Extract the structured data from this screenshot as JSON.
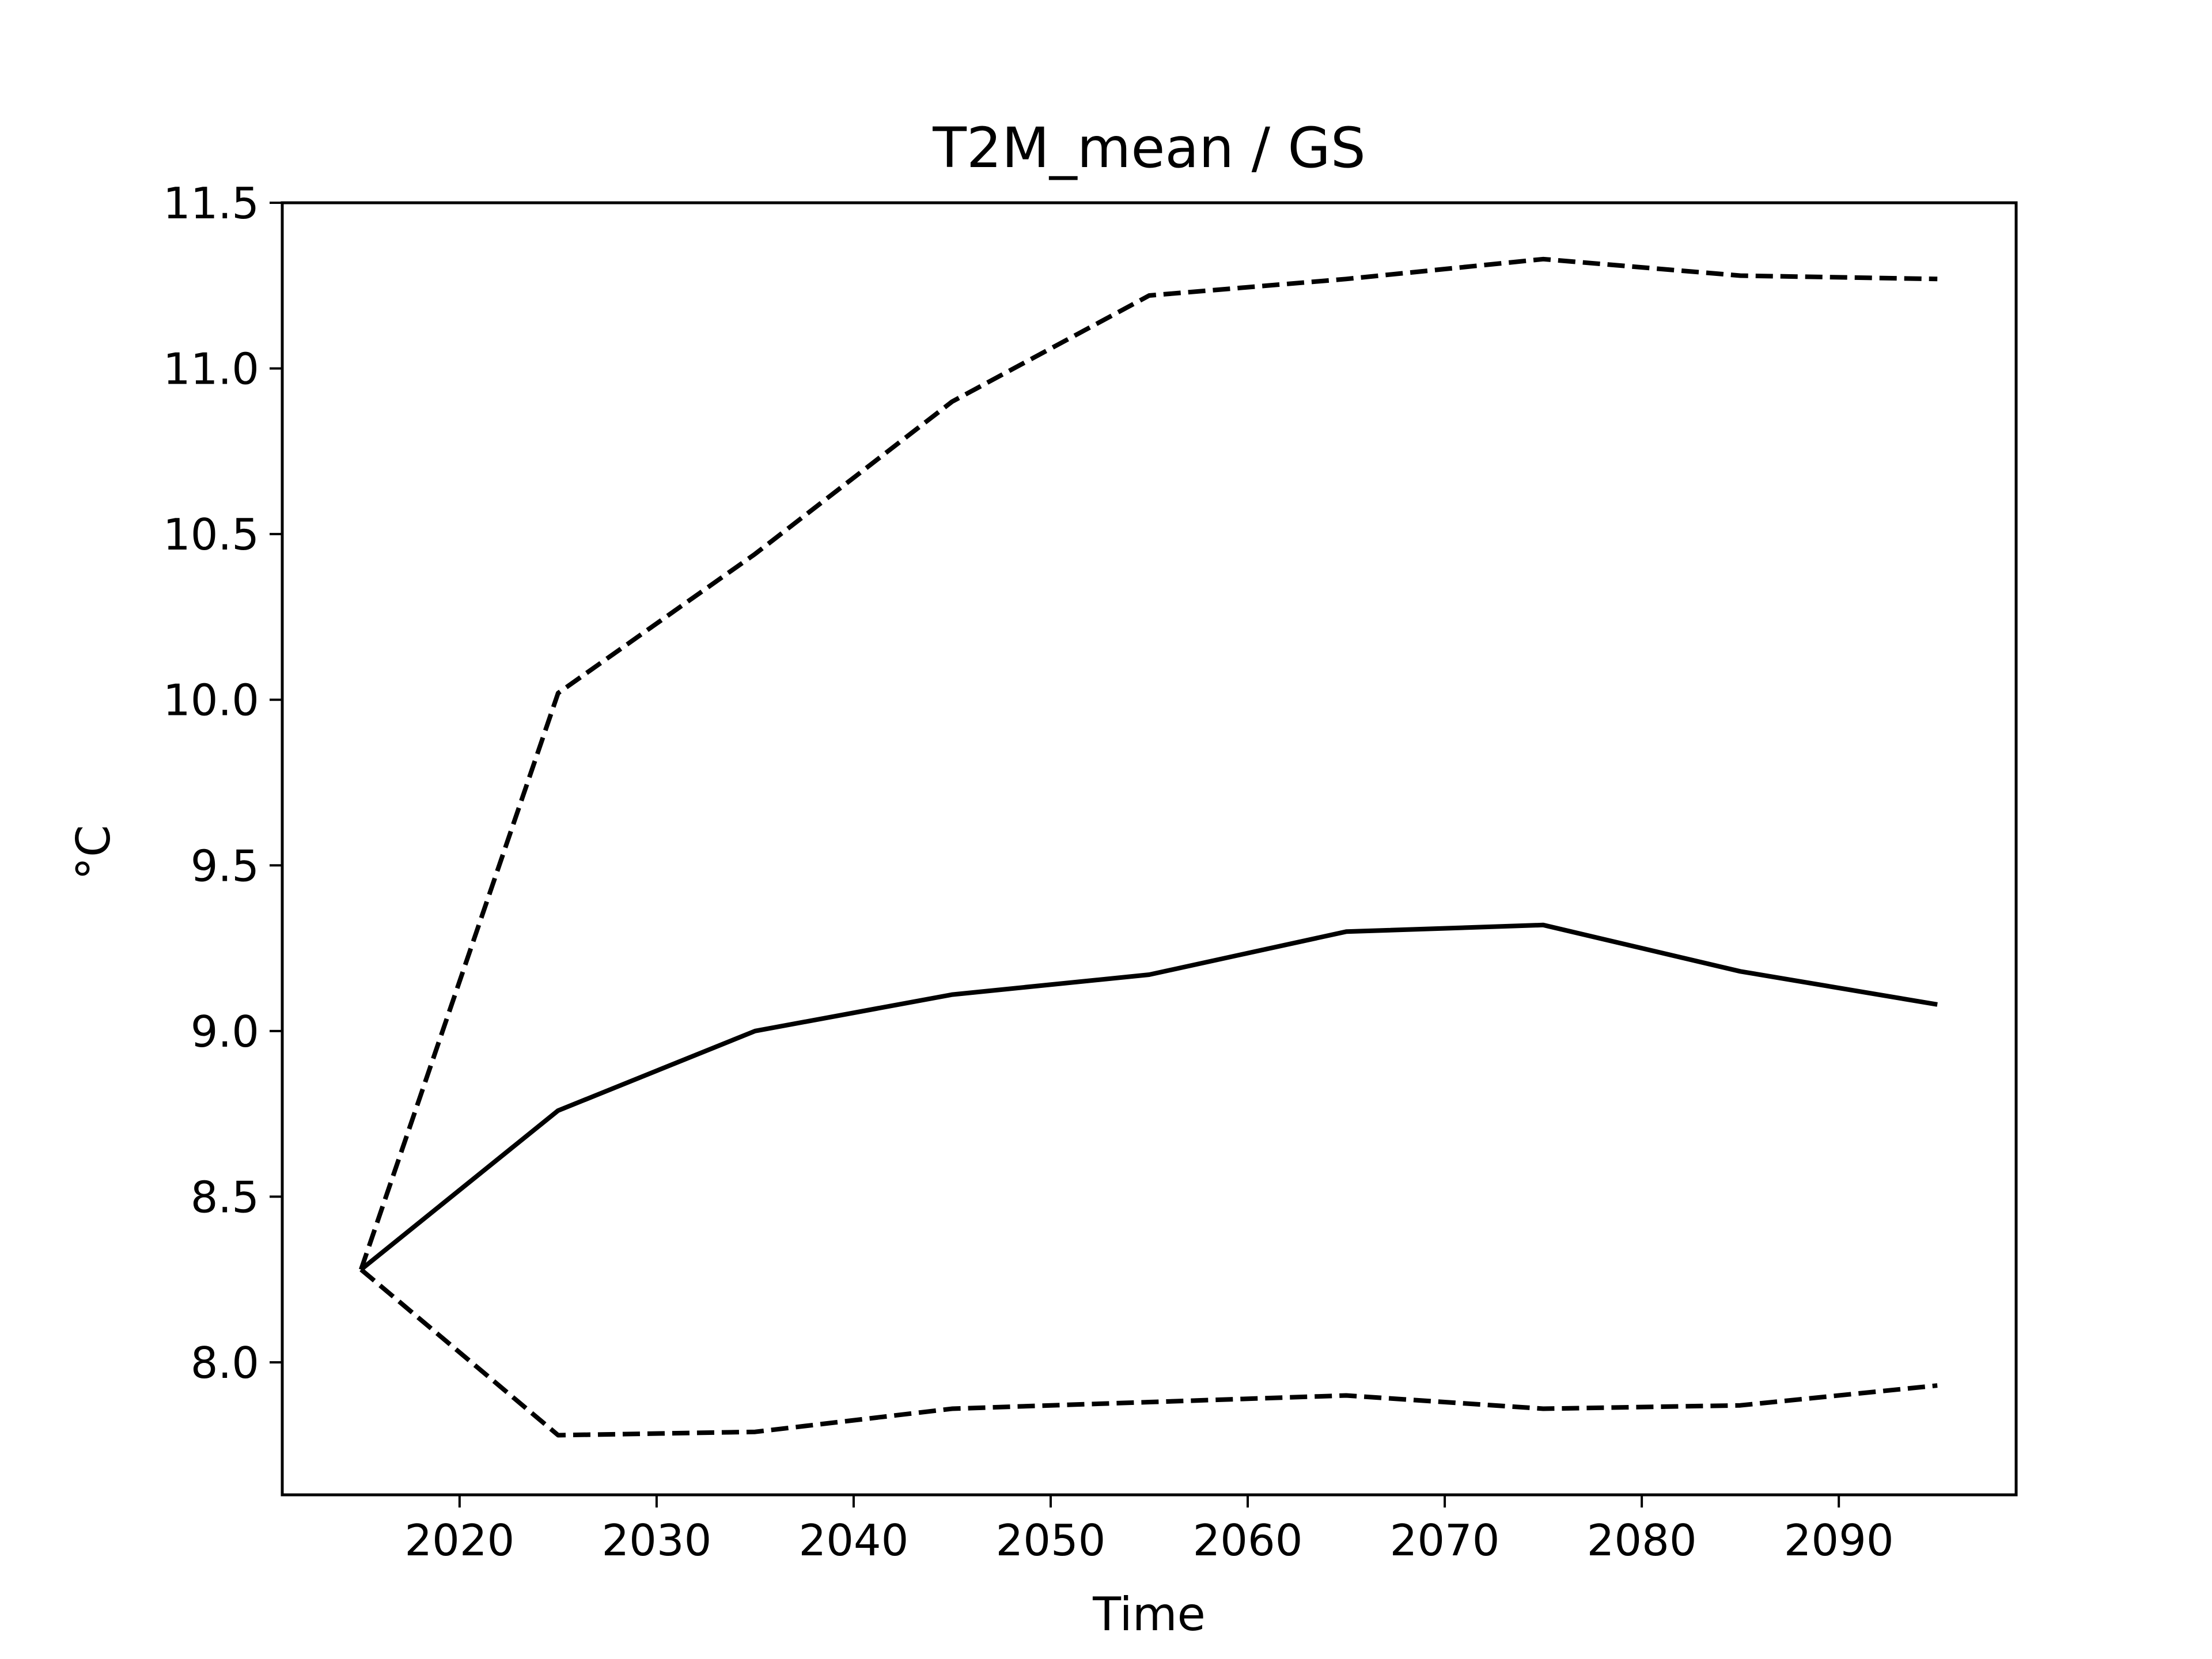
{
  "chart_data": {
    "type": "line",
    "title": "T2M_mean / GS",
    "xlabel": "Time",
    "ylabel": "°C",
    "xlim": [
      2011,
      2099
    ],
    "ylim": [
      7.6,
      11.5
    ],
    "xticks": [
      2020,
      2030,
      2040,
      2050,
      2060,
      2070,
      2080,
      2090
    ],
    "yticks": [
      8.0,
      8.5,
      9.0,
      9.5,
      10.0,
      10.5,
      11.0,
      11.5
    ],
    "ytick_labels": [
      "8.0",
      "8.5",
      "9.0",
      "9.5",
      "10.0",
      "10.5",
      "11.0",
      "11.5"
    ],
    "grid": false,
    "color": "#000000",
    "x": [
      2015,
      2025,
      2035,
      2045,
      2055,
      2065,
      2075,
      2085,
      2095
    ],
    "series": [
      {
        "style": "solid",
        "values": [
          8.28,
          8.76,
          9.0,
          9.11,
          9.17,
          9.3,
          9.32,
          9.18,
          9.08
        ]
      },
      {
        "style": "dashed",
        "values": [
          8.28,
          10.02,
          10.44,
          10.9,
          11.22,
          11.27,
          11.33,
          11.28,
          11.27
        ]
      },
      {
        "style": "dashed",
        "values": [
          8.28,
          7.78,
          7.79,
          7.86,
          7.88,
          7.9,
          7.86,
          7.87,
          7.93
        ]
      }
    ]
  }
}
